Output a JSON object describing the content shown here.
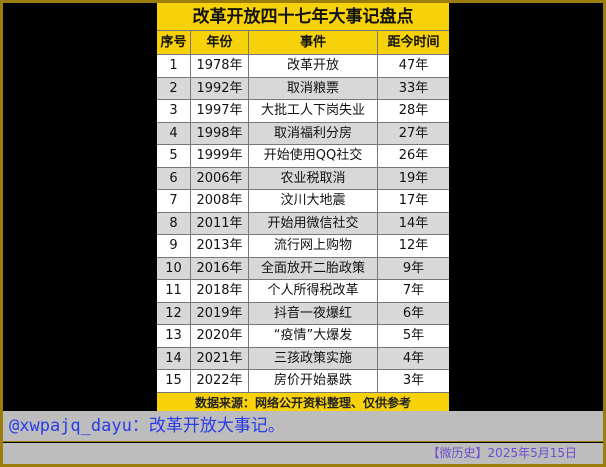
{
  "table": {
    "title": "改革开放四十七年大事记盘点",
    "headers": [
      "序号",
      "年份",
      "事件",
      "距今时间"
    ],
    "rows": [
      [
        "1",
        "1978年",
        "改革开放",
        "47年"
      ],
      [
        "2",
        "1992年",
        "取消粮票",
        "33年"
      ],
      [
        "3",
        "1997年",
        "大批工人下岗失业",
        "28年"
      ],
      [
        "4",
        "1998年",
        "取消福利分房",
        "27年"
      ],
      [
        "5",
        "1999年",
        "开始使用QQ社交",
        "26年"
      ],
      [
        "6",
        "2006年",
        "农业税取消",
        "19年"
      ],
      [
        "7",
        "2008年",
        "汶川大地震",
        "17年"
      ],
      [
        "8",
        "2011年",
        "开始用微信社交",
        "14年"
      ],
      [
        "9",
        "2013年",
        "流行网上购物",
        "12年"
      ],
      [
        "10",
        "2016年",
        "全面放开二胎政策",
        "9年"
      ],
      [
        "11",
        "2018年",
        "个人所得税改革",
        "7年"
      ],
      [
        "12",
        "2019年",
        "抖音一夜爆红",
        "6年"
      ],
      [
        "13",
        "2020年",
        "“疫情”大爆发",
        "5年"
      ],
      [
        "14",
        "2021年",
        "三孩政策实施",
        "4年"
      ],
      [
        "15",
        "2022年",
        "房价开始暴跌",
        "3年"
      ]
    ],
    "footer": "数据来源：网络公开资料整理、仅供参考"
  },
  "caption": "@xwpajq_dayu：改革开放大事记。",
  "dateline": "【微历史】2025年5月15日",
  "colors": {
    "header": "#f7d10a",
    "border": "#9a7d0c",
    "caption": "#2a3be8"
  }
}
